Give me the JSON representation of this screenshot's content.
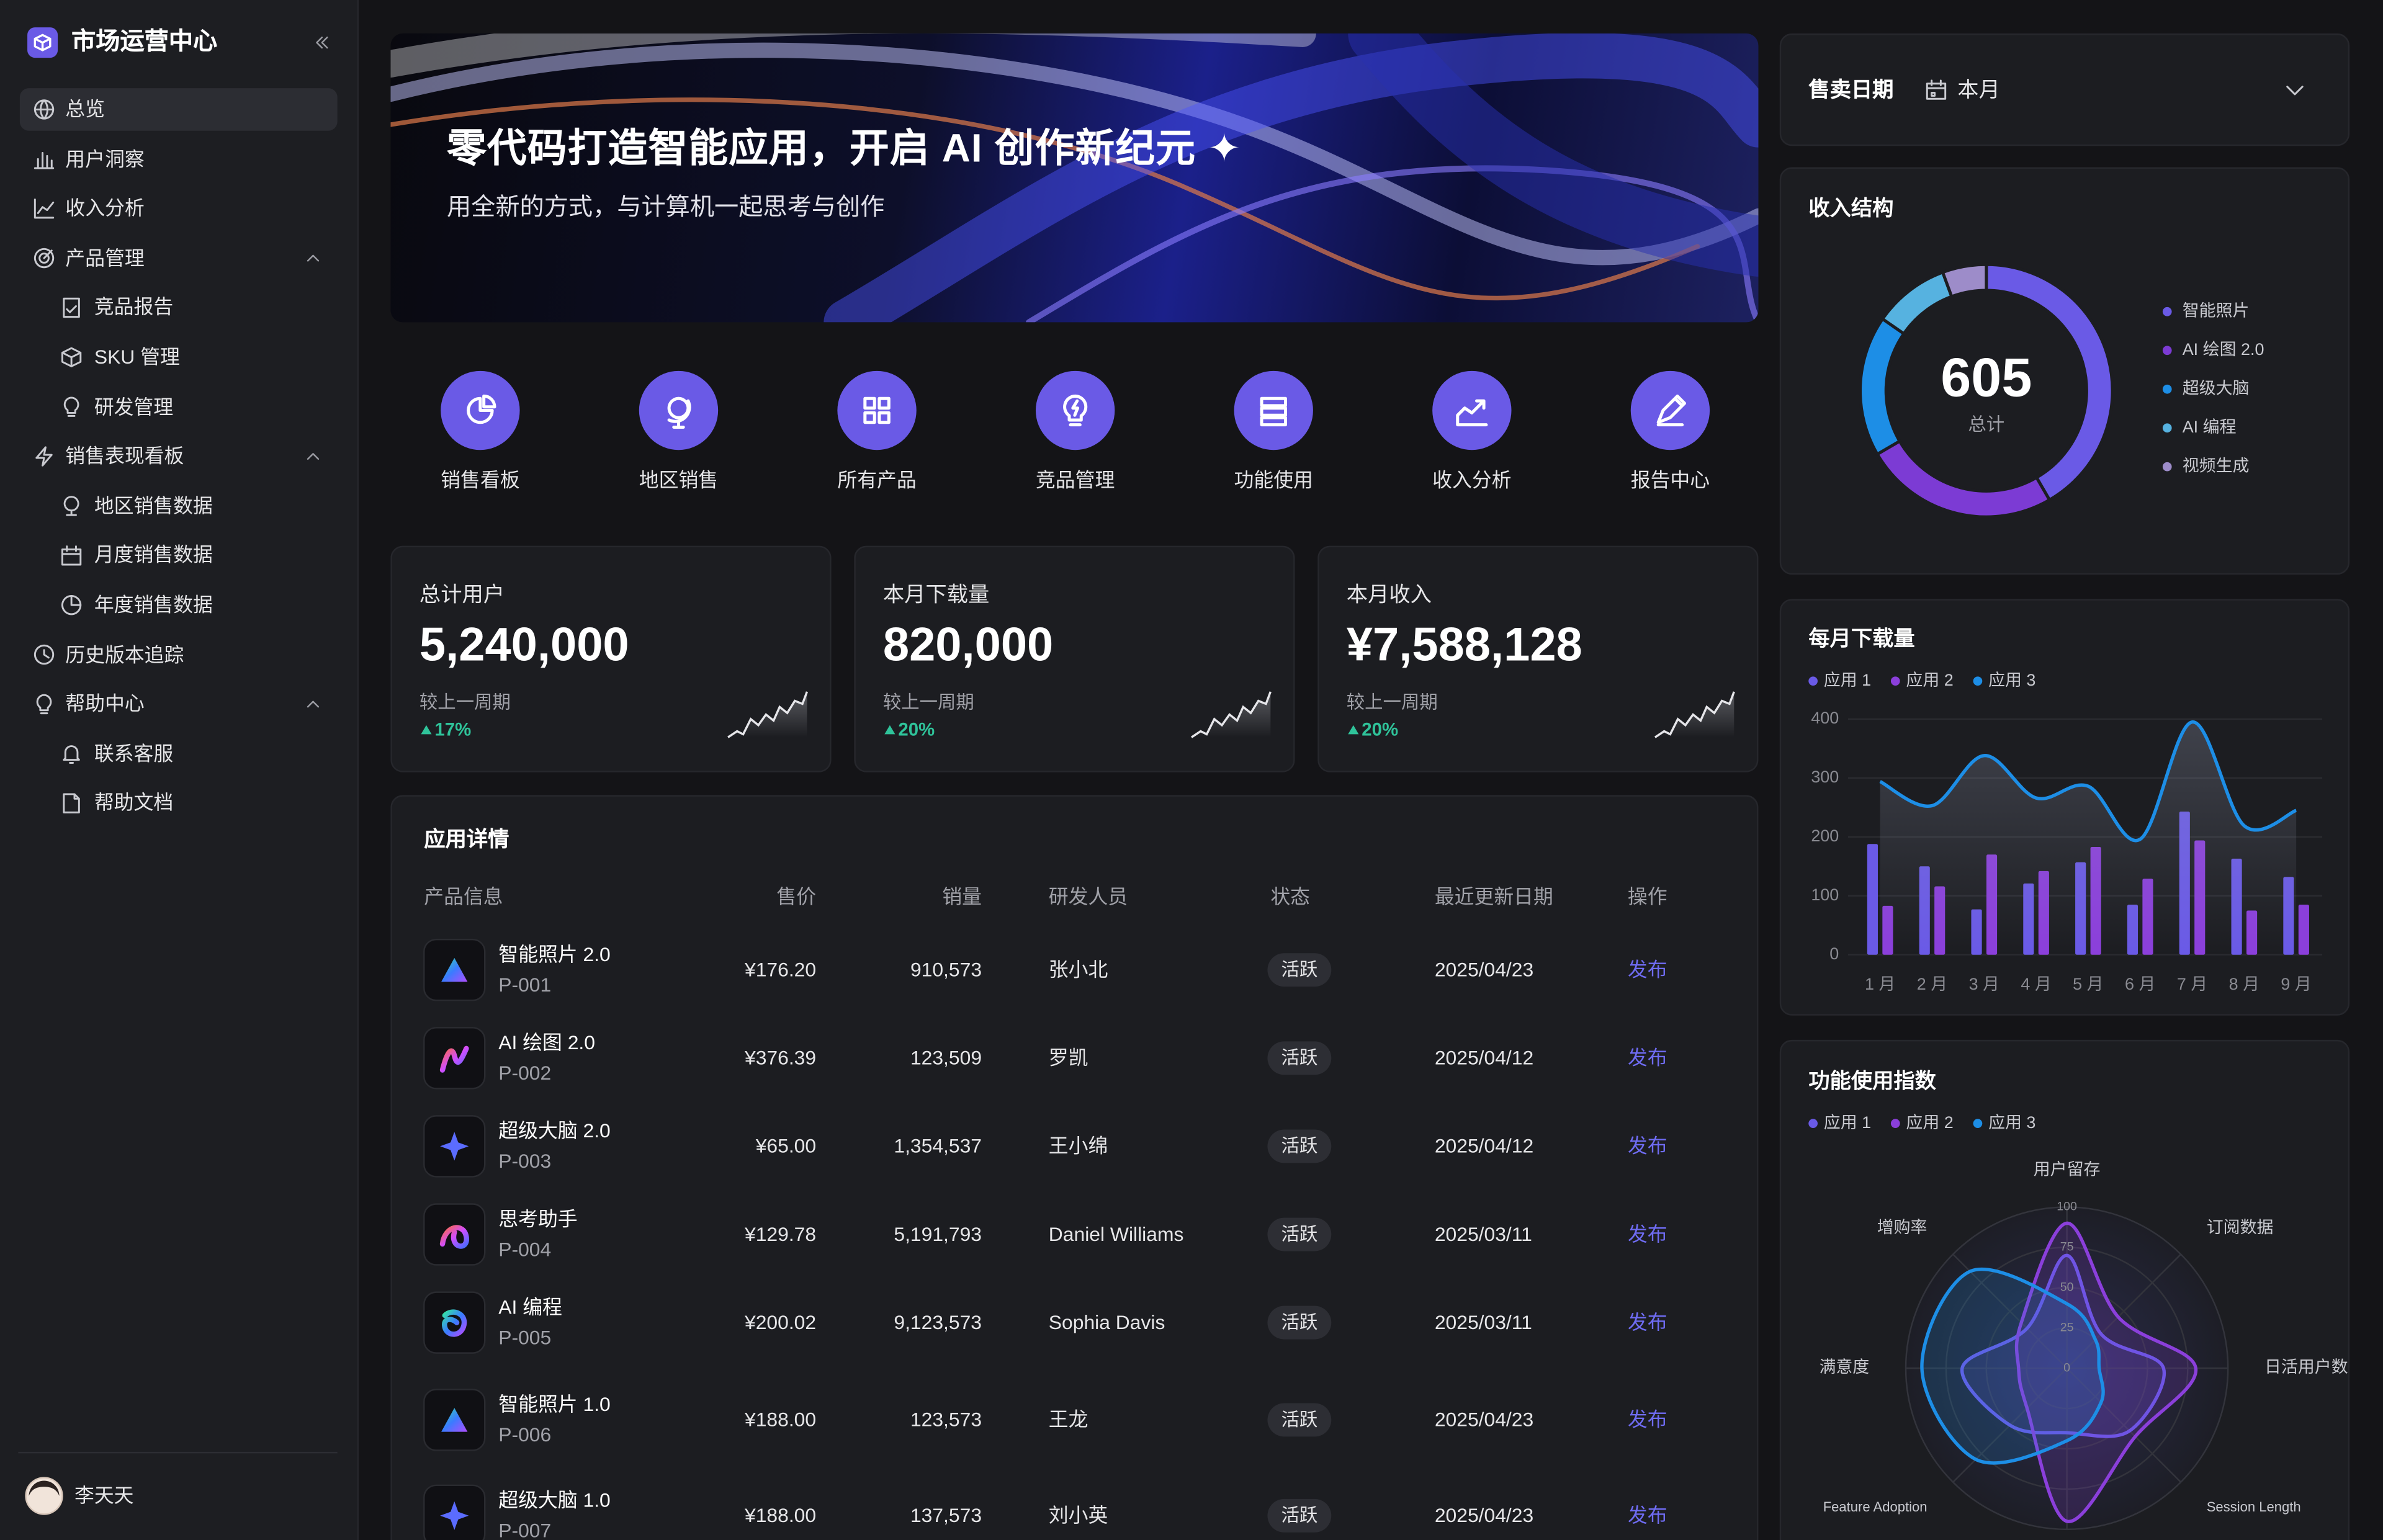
{
  "sidebar": {
    "title": "市场运营中心",
    "user": "李天天",
    "nav": [
      {
        "label": "总览"
      },
      {
        "label": "用户洞察"
      },
      {
        "label": "收入分析"
      },
      {
        "label": "产品管理",
        "children": [
          "竞品报告",
          "SKU 管理",
          "研发管理"
        ]
      },
      {
        "label": "销售表现看板",
        "children": [
          "地区销售数据",
          "月度销售数据",
          "年度销售数据"
        ]
      },
      {
        "label": "历史版本追踪"
      },
      {
        "label": "帮助中心",
        "children": [
          "联系客服",
          "帮助文档"
        ]
      }
    ]
  },
  "banner": {
    "title": "零代码打造智能应用，开启 AI 创作新纪元 ✦",
    "subtitle": "用全新的方式，与计算机一起思考与创作"
  },
  "shortcuts": [
    "销售看板",
    "地区销售",
    "所有产品",
    "竞品管理",
    "功能使用",
    "收入分析",
    "报告中心"
  ],
  "stats": [
    {
      "label": "总计用户",
      "value": "5,240,000",
      "compare": "较上一周期",
      "change": "17%"
    },
    {
      "label": "本月下载量",
      "value": "820,000",
      "compare": "较上一周期",
      "change": "20%"
    },
    {
      "label": "本月收入",
      "value": "¥7,588,128",
      "compare": "较上一周期",
      "change": "20%"
    }
  ],
  "table": {
    "title": "应用详情",
    "columns": [
      "产品信息",
      "售价",
      "销量",
      "研发人员",
      "状态",
      "最近更新日期",
      "操作"
    ],
    "rows": [
      {
        "name": "智能照片 2.0",
        "code": "P-001",
        "price": "¥176.20",
        "sales": "910,573",
        "developer": "张小北",
        "status": "活跃",
        "date": "2025/04/23",
        "action": "发布"
      },
      {
        "name": "AI 绘图 2.0",
        "code": "P-002",
        "price": "¥376.39",
        "sales": "123,509",
        "developer": "罗凯",
        "status": "活跃",
        "date": "2025/04/12",
        "action": "发布"
      },
      {
        "name": "超级大脑 2.0",
        "code": "P-003",
        "price": "¥65.00",
        "sales": "1,354,537",
        "developer": "王小绵",
        "status": "活跃",
        "date": "2025/04/12",
        "action": "发布"
      },
      {
        "name": "思考助手",
        "code": "P-004",
        "price": "¥129.78",
        "sales": "5,191,793",
        "developer": "Daniel Williams",
        "status": "活跃",
        "date": "2025/03/11",
        "action": "发布"
      },
      {
        "name": "AI 编程",
        "code": "P-005",
        "price": "¥200.02",
        "sales": "9,123,573",
        "developer": "Sophia Davis",
        "status": "活跃",
        "date": "2025/03/11",
        "action": "发布"
      },
      {
        "name": "智能照片 1.0",
        "code": "P-006",
        "price": "¥188.00",
        "sales": "123,573",
        "developer": "王龙",
        "status": "活跃",
        "date": "2025/04/23",
        "action": "发布"
      },
      {
        "name": "超级大脑 1.0",
        "code": "P-007",
        "price": "¥188.00",
        "sales": "137,573",
        "developer": "刘小英",
        "status": "活跃",
        "date": "2025/04/23",
        "action": "发布"
      }
    ]
  },
  "filter": {
    "label": "售卖日期",
    "value": "本月"
  },
  "chart_data": [
    {
      "type": "pie",
      "title": "收入结构",
      "total": 605,
      "total_label": "总计",
      "categories": [
        "智能照片",
        "AI 绘图 2.0",
        "超级大脑",
        "AI 编程",
        "视频生成"
      ],
      "values": [
        252,
        151,
        109,
        59,
        34
      ],
      "colors": [
        "#6a5ae6",
        "#7c3bd4",
        "#1d8ee6",
        "#56b2e0",
        "#9d8cc9"
      ]
    },
    {
      "type": "bar",
      "title": "每月下载量",
      "categories": [
        "1 月",
        "2 月",
        "3 月",
        "4 月",
        "5 月",
        "6 月",
        "7 月",
        "8 月",
        "9 月"
      ],
      "ylim": [
        0,
        400
      ],
      "yticks": [
        0,
        100,
        200,
        300,
        400
      ],
      "grid": true,
      "series": [
        {
          "name": "应用 1",
          "type": "bar",
          "color": "#6a5ae6",
          "values": [
            188,
            150,
            77,
            121,
            157,
            85,
            243,
            163,
            132
          ]
        },
        {
          "name": "应用 2",
          "type": "bar",
          "color": "#8b3fdb",
          "values": [
            83,
            116,
            170,
            142,
            183,
            129,
            194,
            75,
            85
          ]
        },
        {
          "name": "应用 3",
          "type": "line",
          "color": "#1d8ee6",
          "values": [
            294,
            253,
            338,
            266,
            286,
            196,
            395,
            219,
            245
          ]
        }
      ]
    },
    {
      "type": "radar",
      "title": "功能使用指数",
      "indicators": [
        "用户留存",
        "订阅数据",
        "日活用户数",
        "Session Length",
        null,
        "Feature Adoption",
        "满意度",
        "增购率"
      ],
      "ylim": [
        0,
        100
      ],
      "yticks": [
        0,
        25,
        50,
        75,
        100
      ],
      "series": [
        {
          "name": "应用 1",
          "color": "#6a5ae6",
          "values": [
            70,
            30,
            60,
            55,
            40,
            50,
            65,
            35
          ]
        },
        {
          "name": "应用 2",
          "color": "#8b3fdb",
          "values": [
            90,
            45,
            80,
            60,
            95,
            35,
            30,
            40
          ]
        },
        {
          "name": "应用 3",
          "color": "#1d8ee6",
          "values": [
            40,
            25,
            20,
            30,
            45,
            80,
            90,
            85
          ]
        }
      ]
    }
  ]
}
